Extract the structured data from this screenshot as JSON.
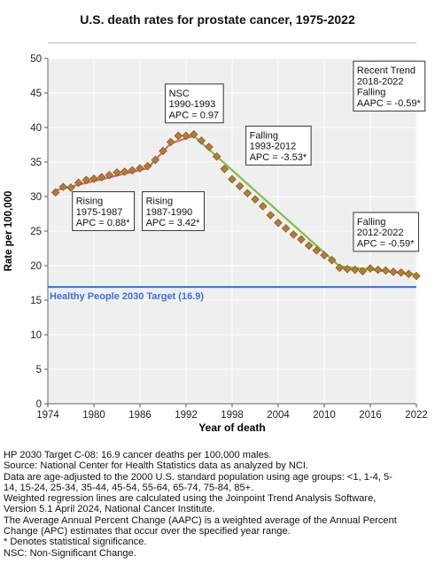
{
  "chart_data": {
    "type": "line",
    "title": "U.S. death rates for prostate cancer, 1975-2022",
    "xlabel": "Year of death",
    "ylabel": "Rate per 100,000",
    "xlim": [
      1974,
      2022
    ],
    "ylim": [
      0,
      50
    ],
    "x_ticks": [
      1974,
      1980,
      1986,
      1992,
      1998,
      2004,
      2010,
      2016,
      2022
    ],
    "y_ticks": [
      0,
      5,
      10,
      15,
      20,
      25,
      30,
      35,
      40,
      45,
      50
    ],
    "grid": true,
    "target_line": {
      "label": "Healthy People 2030 Target (16.9)",
      "value": 16.9,
      "color": "#3b6fd8"
    },
    "observed": {
      "x": [
        1975,
        1976,
        1977,
        1978,
        1979,
        1980,
        1981,
        1982,
        1983,
        1984,
        1985,
        1986,
        1987,
        1988,
        1989,
        1990,
        1991,
        1992,
        1993,
        1994,
        1995,
        1996,
        1997,
        1998,
        1999,
        2000,
        2001,
        2002,
        2003,
        2004,
        2005,
        2006,
        2007,
        2008,
        2009,
        2010,
        2011,
        2012,
        2013,
        2014,
        2015,
        2016,
        2017,
        2018,
        2019,
        2020,
        2021,
        2022
      ],
      "y": [
        30.6,
        31.4,
        31.3,
        32.0,
        32.4,
        32.6,
        32.8,
        33.1,
        33.5,
        33.6,
        33.8,
        34.1,
        34.4,
        35.3,
        36.6,
        37.9,
        38.8,
        38.8,
        39.0,
        38.1,
        37.2,
        35.8,
        34.0,
        32.5,
        31.5,
        30.5,
        29.6,
        28.6,
        27.3,
        26.2,
        25.4,
        24.5,
        23.8,
        22.9,
        22.2,
        21.5,
        20.8,
        19.7,
        19.5,
        19.4,
        19.2,
        19.6,
        19.4,
        19.3,
        19.1,
        19.0,
        18.8,
        18.5
      ],
      "marker_color": "#b97a30",
      "marker_edge": "#6b4a1e"
    },
    "segments": [
      {
        "years": [
          1975,
          1987
        ],
        "trend": "Rising",
        "label_period": "1975-1987",
        "stat_name": "APC",
        "stat_value": "0.88*",
        "color": "#e06666",
        "start": 30.9,
        "end": 34.1
      },
      {
        "years": [
          1987,
          1990
        ],
        "trend": "Rising",
        "label_period": "1987-1990",
        "stat_name": "APC",
        "stat_value": "3.42*",
        "color": "#e06666",
        "start": 34.1,
        "end": 37.7
      },
      {
        "years": [
          1990,
          1993
        ],
        "trend": "NSC",
        "label_period": "1990-1993",
        "stat_name": "APC",
        "stat_value": "0.97",
        "color": "#e06666",
        "start": 37.7,
        "end": 38.8
      },
      {
        "years": [
          1993,
          2012
        ],
        "trend": "Falling",
        "label_period": "1993-2012",
        "stat_name": "APC",
        "stat_value": "-3.53*",
        "color": "#7dc242",
        "start": 38.8,
        "end": 19.9
      },
      {
        "years": [
          2012,
          2022
        ],
        "trend": "Falling",
        "label_period": "2012-2022",
        "stat_name": "APC",
        "stat_value": "-0.59*",
        "color": "#7dc242",
        "start": 19.9,
        "end": 18.7
      }
    ],
    "annotations": [
      {
        "lines": [
          "Rising",
          "1975-1987",
          "APC =  0.88*"
        ],
        "at": [
          1977.2,
          30.7
        ]
      },
      {
        "lines": [
          "Rising",
          "1987-1990",
          "APC =  3.42*"
        ],
        "at": [
          1986.3,
          30.7
        ]
      },
      {
        "lines": [
          "NSC",
          "1990-1993",
          "APC =  0.97"
        ],
        "at": [
          1989.3,
          46.3
        ]
      },
      {
        "lines": [
          "Falling",
          "1993-2012",
          "APC = -3.53*"
        ],
        "at": [
          1999.8,
          40.2
        ]
      },
      {
        "lines": [
          "Falling",
          "2012-2022",
          "APC = -0.59*"
        ],
        "at": [
          2013.8,
          27.7
        ]
      },
      {
        "lines": [
          "Recent Trend",
          "2018-2022",
          "Falling",
          "AAPC = -0.59*"
        ],
        "at": [
          2013.8,
          49.6
        ]
      }
    ]
  },
  "footnotes": [
    "HP 2030 Target C-08: 16.9 cancer deaths per 100,000 males.",
    "Source: National Center for Health Statistics data as analyzed by NCI.",
    "Data are age-adjusted to the 2000 U.S. standard population using age groups: <1, 1-4, 5-",
    "14, 15-24, 25-34, 35-44, 45-54, 55-64, 65-74, 75-84, 85+.",
    "Weighted regression lines are calculated using the Joinpoint Trend Analysis Software,",
    "Version 5.1 April 2024, National Cancer Institute.",
    "The Average Annual Percent Change (AAPC) is a weighted average of the Annual Percent",
    "Change (APC) estimates that occur over the specified year range.",
    "* Denotes statistical significance.",
    "NSC: Non-Significant Change."
  ]
}
